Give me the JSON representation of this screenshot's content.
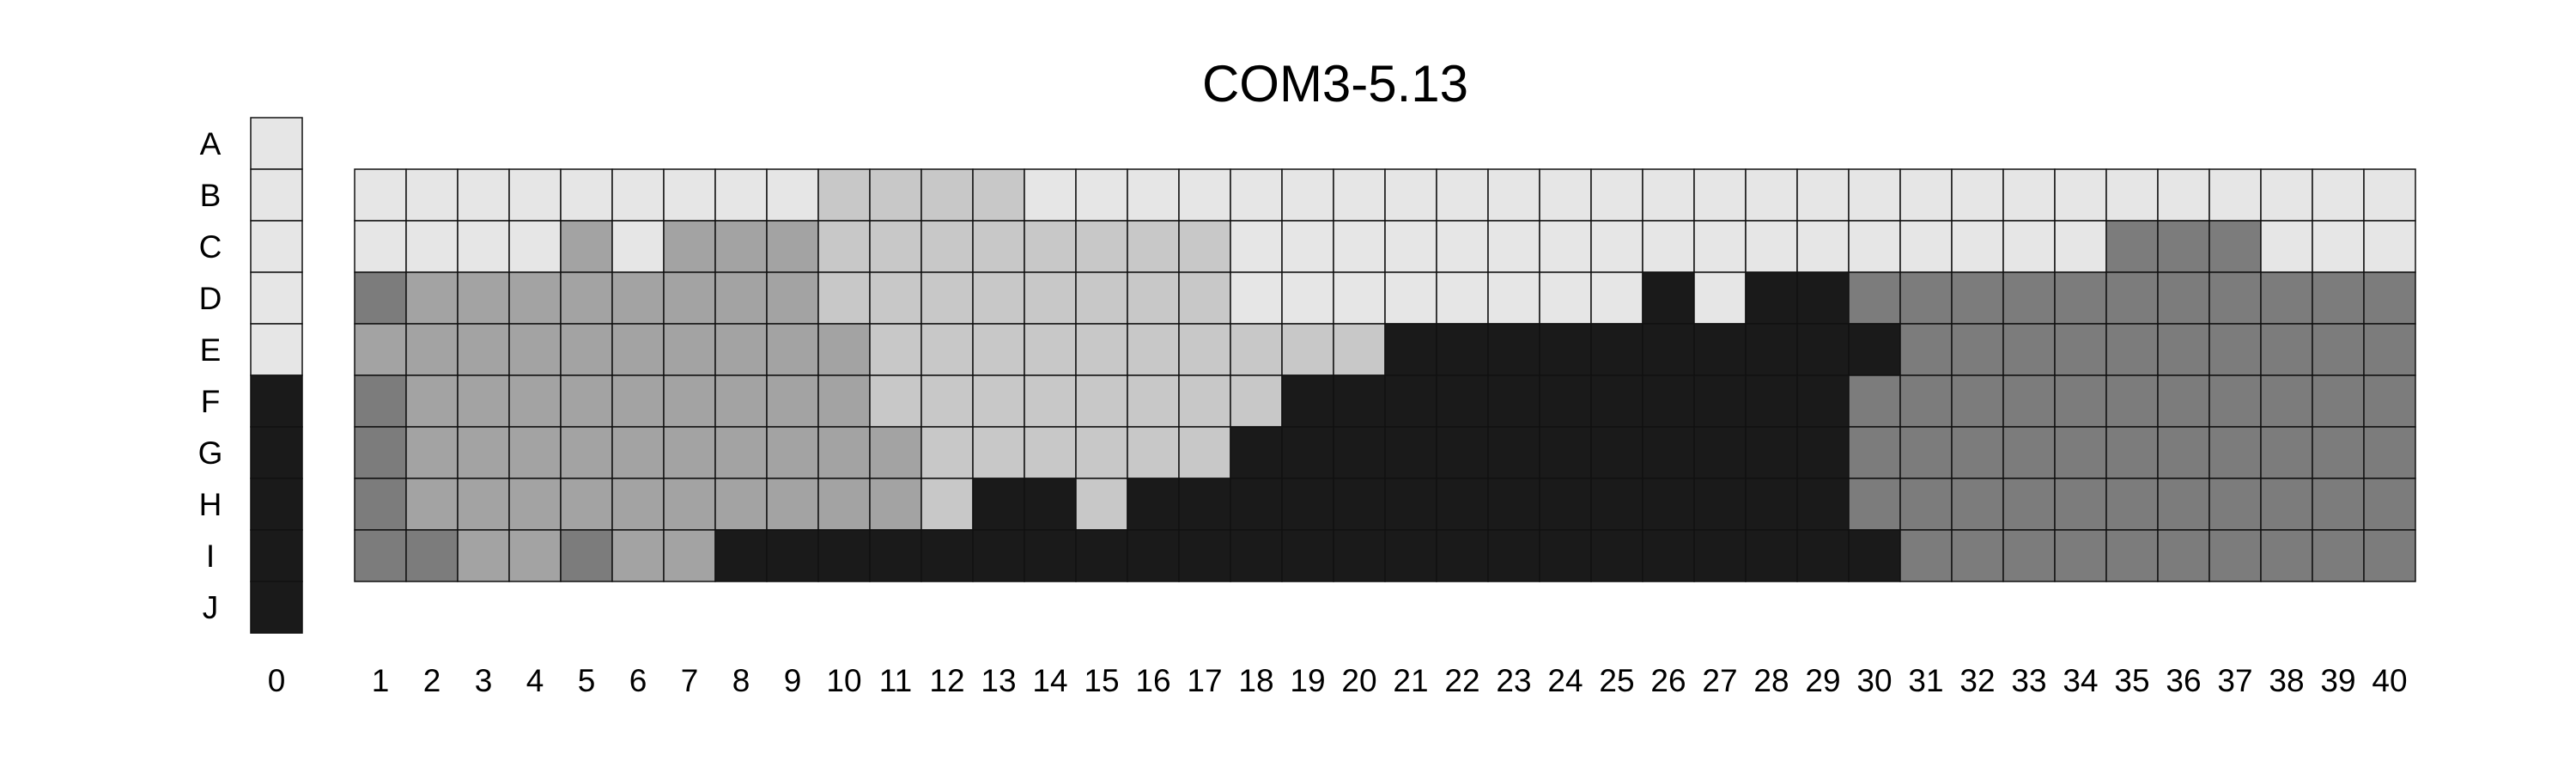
{
  "chart_data": {
    "type": "heatmap",
    "title": "COM3-5.13",
    "xlabel": "",
    "ylabel": "",
    "rows": [
      "A",
      "B",
      "C",
      "D",
      "E",
      "F",
      "G",
      "H",
      "I",
      "J"
    ],
    "columns": [
      "0",
      "1",
      "2",
      "3",
      "4",
      "5",
      "6",
      "7",
      "8",
      "9",
      "10",
      "11",
      "12",
      "13",
      "14",
      "15",
      "16",
      "17",
      "18",
      "19",
      "20",
      "21",
      "22",
      "23",
      "24",
      "25",
      "26",
      "27",
      "28",
      "29",
      "30",
      "31",
      "32",
      "33",
      "34",
      "35",
      "36",
      "37",
      "38",
      "39",
      "40"
    ],
    "legend": "none",
    "grid": true,
    "colors": {
      "0": "#e6e6e6",
      "1": "#c8c8c8",
      "2": "#a3a3a3",
      "3": "#7c7c7c",
      "4": "#1a1a1a"
    },
    "reference_column": {
      "column": "0",
      "values": [
        0,
        0,
        0,
        0,
        0,
        4,
        4,
        4,
        4,
        4
      ]
    },
    "main_grid": {
      "rows": [
        "B",
        "C",
        "D",
        "E",
        "F",
        "G",
        "H",
        "I"
      ],
      "columns": [
        "1",
        "2",
        "3",
        "4",
        "5",
        "6",
        "7",
        "8",
        "9",
        "10",
        "11",
        "12",
        "13",
        "14",
        "15",
        "16",
        "17",
        "18",
        "19",
        "20",
        "21",
        "22",
        "23",
        "24",
        "25",
        "26",
        "27",
        "28",
        "29",
        "30",
        "31",
        "32",
        "33",
        "34",
        "35",
        "36",
        "37",
        "38",
        "39",
        "40"
      ],
      "values": [
        [
          0,
          0,
          0,
          0,
          0,
          0,
          0,
          0,
          0,
          1,
          1,
          1,
          1,
          0,
          0,
          0,
          0,
          0,
          0,
          0,
          0,
          0,
          0,
          0,
          0,
          0,
          0,
          0,
          0,
          0,
          0,
          0,
          0,
          0,
          0,
          0,
          0,
          0,
          0,
          0
        ],
        [
          0,
          0,
          0,
          0,
          2,
          0,
          2,
          2,
          2,
          1,
          1,
          1,
          1,
          1,
          1,
          1,
          1,
          0,
          0,
          0,
          0,
          0,
          0,
          0,
          0,
          0,
          0,
          0,
          0,
          0,
          0,
          0,
          0,
          0,
          3,
          3,
          3,
          0,
          0,
          0
        ],
        [
          3,
          2,
          2,
          2,
          2,
          2,
          2,
          2,
          2,
          1,
          1,
          1,
          1,
          1,
          1,
          1,
          1,
          0,
          0,
          0,
          0,
          0,
          0,
          0,
          0,
          4,
          0,
          4,
          4,
          3,
          3,
          3,
          3,
          3,
          3,
          3,
          3,
          3,
          3,
          3
        ],
        [
          2,
          2,
          2,
          2,
          2,
          2,
          2,
          2,
          2,
          2,
          1,
          1,
          1,
          1,
          1,
          1,
          1,
          1,
          1,
          1,
          4,
          4,
          4,
          4,
          4,
          4,
          4,
          4,
          4,
          4,
          3,
          3,
          3,
          3,
          3,
          3,
          3,
          3,
          3,
          3
        ],
        [
          3,
          2,
          2,
          2,
          2,
          2,
          2,
          2,
          2,
          2,
          1,
          1,
          1,
          1,
          1,
          1,
          1,
          1,
          4,
          4,
          4,
          4,
          4,
          4,
          4,
          4,
          4,
          4,
          4,
          3,
          3,
          3,
          3,
          3,
          3,
          3,
          3,
          3,
          3,
          3
        ],
        [
          3,
          2,
          2,
          2,
          2,
          2,
          2,
          2,
          2,
          2,
          2,
          1,
          1,
          1,
          1,
          1,
          1,
          4,
          4,
          4,
          4,
          4,
          4,
          4,
          4,
          4,
          4,
          4,
          4,
          3,
          3,
          3,
          3,
          3,
          3,
          3,
          3,
          3,
          3,
          3
        ],
        [
          3,
          2,
          2,
          2,
          2,
          2,
          2,
          2,
          2,
          2,
          2,
          1,
          4,
          4,
          1,
          4,
          4,
          4,
          4,
          4,
          4,
          4,
          4,
          4,
          4,
          4,
          4,
          4,
          4,
          3,
          3,
          3,
          3,
          3,
          3,
          3,
          3,
          3,
          3,
          3
        ],
        [
          3,
          3,
          2,
          2,
          3,
          2,
          2,
          4,
          4,
          4,
          4,
          4,
          4,
          4,
          4,
          4,
          4,
          4,
          4,
          4,
          4,
          4,
          4,
          4,
          4,
          4,
          4,
          4,
          4,
          4,
          3,
          3,
          3,
          3,
          3,
          3,
          3,
          3,
          3,
          3
        ]
      ]
    }
  }
}
